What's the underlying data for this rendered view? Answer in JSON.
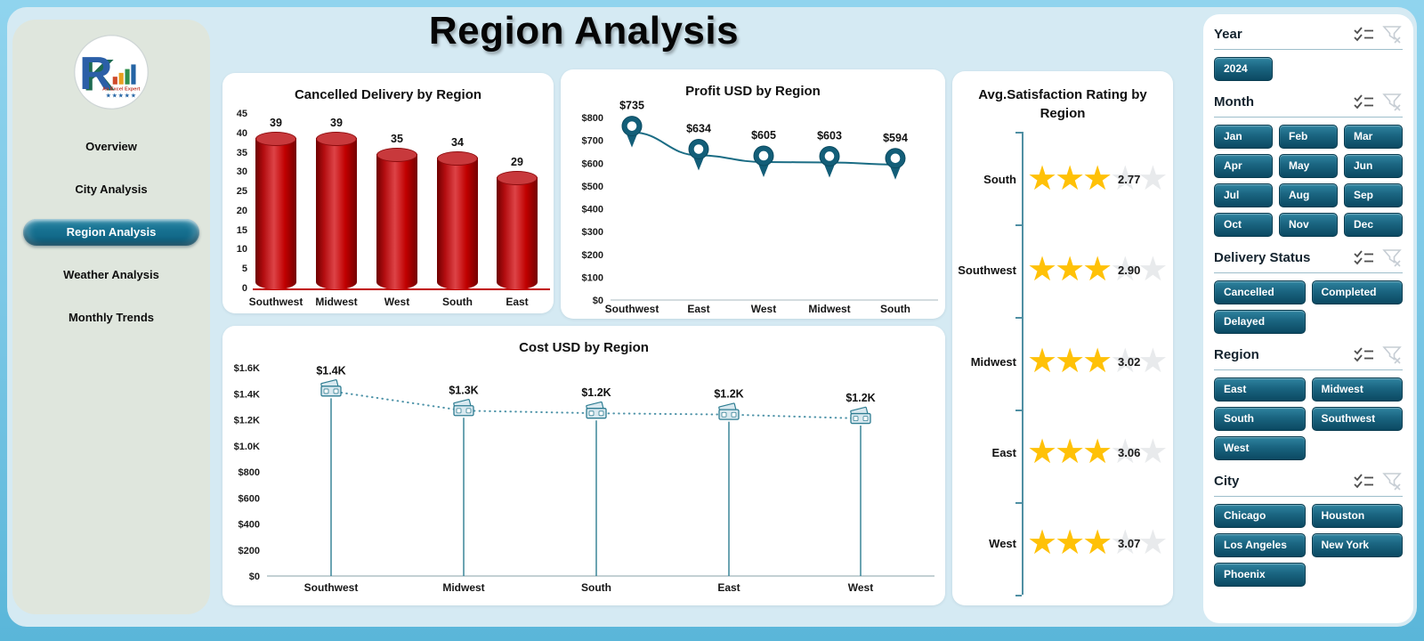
{
  "app": {
    "title": "Region Analysis"
  },
  "colors": {
    "accent_teal": "#135E78",
    "button_dark": "#0B4962",
    "bar_red": "#C00000",
    "star_gold": "#FFC107",
    "star_grey": "#E8EAEC",
    "line_teal": "#1A6C84",
    "cost_line": "#4E93A8",
    "panel_blue": "#D5EAF3",
    "sidebar_sage": "#DFE6DD"
  },
  "sidebar": {
    "logo": {
      "letter_r": "R",
      "letter_k": "K",
      "subtitle": "An Excel Expert",
      "stars": "★★★★★"
    },
    "items": [
      {
        "label": "Overview",
        "active": false
      },
      {
        "label": "City Analysis",
        "active": false
      },
      {
        "label": "Region Analysis",
        "active": true
      },
      {
        "label": "Weather Analysis",
        "active": false
      },
      {
        "label": "Monthly Trends",
        "active": false
      }
    ]
  },
  "chart_data": [
    {
      "type": "bar",
      "title": "Cancelled Delivery by Region",
      "categories": [
        "Southwest",
        "Midwest",
        "West",
        "South",
        "East"
      ],
      "values": [
        39,
        39,
        35,
        34,
        29
      ],
      "ylim": [
        0,
        45
      ],
      "ytick_step": 5,
      "bar_color": "#C00000",
      "grid": false,
      "legend": "none"
    },
    {
      "type": "line",
      "title": "Profit USD by Region",
      "categories": [
        "Southwest",
        "East",
        "West",
        "Midwest",
        "South"
      ],
      "values": [
        735,
        634,
        605,
        603,
        594
      ],
      "labels": [
        "$735",
        "$634",
        "$605",
        "$603",
        "$594"
      ],
      "ylim": [
        0,
        800
      ],
      "yticks": [
        "$0",
        "$100",
        "$200",
        "$300",
        "$400",
        "$500",
        "$600",
        "$700",
        "$800"
      ],
      "marker": "map-pin",
      "line_style": "solid",
      "grid": false,
      "legend": "none"
    },
    {
      "type": "line",
      "title": "Cost USD by Region",
      "categories": [
        "Southwest",
        "Midwest",
        "South",
        "East",
        "West"
      ],
      "values": [
        1420,
        1270,
        1250,
        1240,
        1210
      ],
      "labels": [
        "$1.4K",
        "$1.3K",
        "$1.2K",
        "$1.2K",
        "$1.2K"
      ],
      "ylim": [
        0,
        1600
      ],
      "yticks": [
        "$0",
        "$200",
        "$400",
        "$600",
        "$800",
        "$1.0K",
        "$1.2K",
        "$1.4K",
        "$1.6K"
      ],
      "marker": "banknote",
      "line_style": "dotted",
      "drop_lines": true,
      "grid": false,
      "legend": "none"
    },
    {
      "type": "rating",
      "title": "Avg.Satisfaction Rating by Region",
      "categories": [
        "South",
        "Southwest",
        "Midwest",
        "East",
        "West"
      ],
      "values": [
        2.77,
        2.9,
        3.02,
        3.06,
        3.07
      ],
      "display": [
        "2.77",
        "2.90",
        "3.02",
        "3.06",
        "3.07"
      ],
      "max_stars": 5,
      "gold_stars": 3,
      "star_gold": "#FFC107",
      "star_grey": "#E8EAEC"
    }
  ],
  "slicers": [
    {
      "title": "Year",
      "cols": 3,
      "items": [
        "2024"
      ],
      "icons": [
        "multi-select-icon",
        "clear-filter-icon"
      ]
    },
    {
      "title": "Month",
      "cols": 3,
      "items": [
        "Jan",
        "Feb",
        "Mar",
        "Apr",
        "May",
        "Jun",
        "Jul",
        "Aug",
        "Sep",
        "Oct",
        "Nov",
        "Dec"
      ],
      "icons": [
        "multi-select-icon",
        "clear-filter-icon"
      ]
    },
    {
      "title": "Delivery Status",
      "cols": 2,
      "items": [
        "Cancelled",
        "Completed",
        "Delayed"
      ],
      "icons": [
        "multi-select-icon",
        "clear-filter-icon"
      ]
    },
    {
      "title": "Region",
      "cols": 2,
      "items": [
        "East",
        "Midwest",
        "South",
        "Southwest",
        "West"
      ],
      "icons": [
        "multi-select-icon",
        "clear-filter-icon"
      ]
    },
    {
      "title": "City",
      "cols": 2,
      "items": [
        "Chicago",
        "Houston",
        "Los Angeles",
        "New York",
        "Phoenix"
      ],
      "icons": [
        "multi-select-icon",
        "clear-filter-icon"
      ]
    }
  ]
}
